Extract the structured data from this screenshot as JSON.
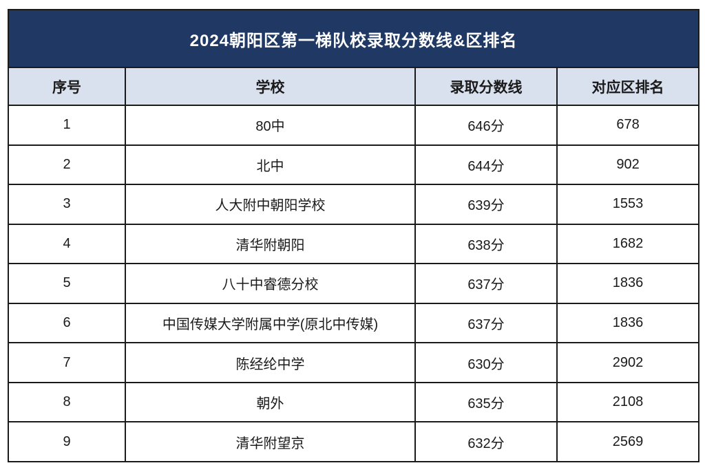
{
  "chart_data": {
    "type": "table",
    "title": "2024朝阳区第一梯队校录取分数线&区排名",
    "columns": [
      "序号",
      "学校",
      "录取分数线",
      "对应区排名"
    ],
    "rows": [
      [
        "1",
        "80中",
        "646分",
        "678"
      ],
      [
        "2",
        "北中",
        "644分",
        "902"
      ],
      [
        "3",
        "人大附中朝阳学校",
        "639分",
        "1553"
      ],
      [
        "4",
        "清华附朝阳",
        "638分",
        "1682"
      ],
      [
        "5",
        "八十中睿德分校",
        "637分",
        "1836"
      ],
      [
        "6",
        "中国传媒大学附属中学(原北中传媒)",
        "637分",
        "1836"
      ],
      [
        "7",
        "陈经纶中学",
        "630分",
        "2902"
      ],
      [
        "8",
        "朝外",
        "635分",
        "2108"
      ],
      [
        "9",
        "清华附望京",
        "632分",
        "2569"
      ]
    ],
    "layout_hints": {
      "grid": "on",
      "title_position": "top-merged-row",
      "alignment": "center"
    }
  },
  "colors": {
    "title_bg": "#1f3864",
    "title_text": "#ffffff",
    "header_bg": "#d9e0ee",
    "row_bg": "#ffffff",
    "border": "#1a1a1a",
    "text": "#1a1a1a",
    "page_bg": "#ffffff"
  }
}
